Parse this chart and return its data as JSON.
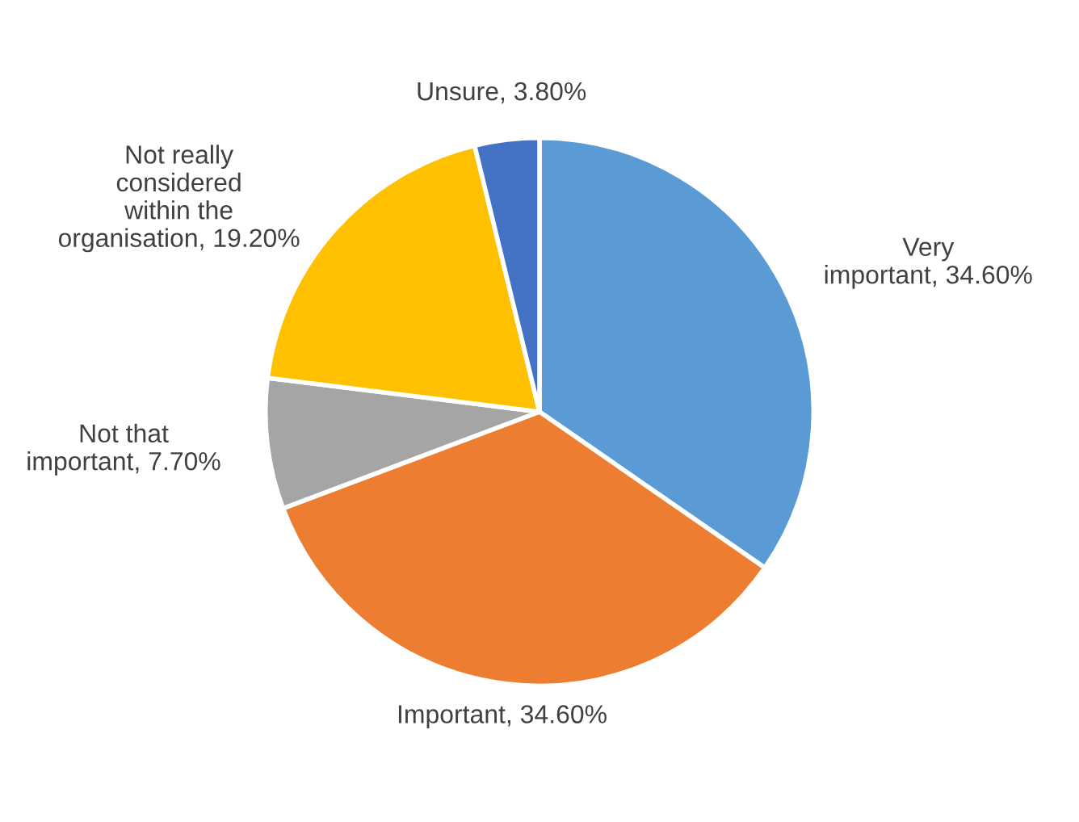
{
  "chart_data": {
    "type": "pie",
    "categories": [
      "Very important",
      "Important",
      "Not that important",
      "Not really considered within the organisation",
      "Unsure"
    ],
    "values": [
      34.6,
      34.6,
      7.7,
      19.2,
      3.8
    ],
    "value_labels": [
      "34.60%",
      "34.60%",
      "7.70%",
      "19.20%",
      "3.80%"
    ],
    "colors": [
      "#5b9bd5",
      "#ed7d31",
      "#a5a5a5",
      "#ffc000",
      "#4472c4"
    ],
    "legend": false
  }
}
